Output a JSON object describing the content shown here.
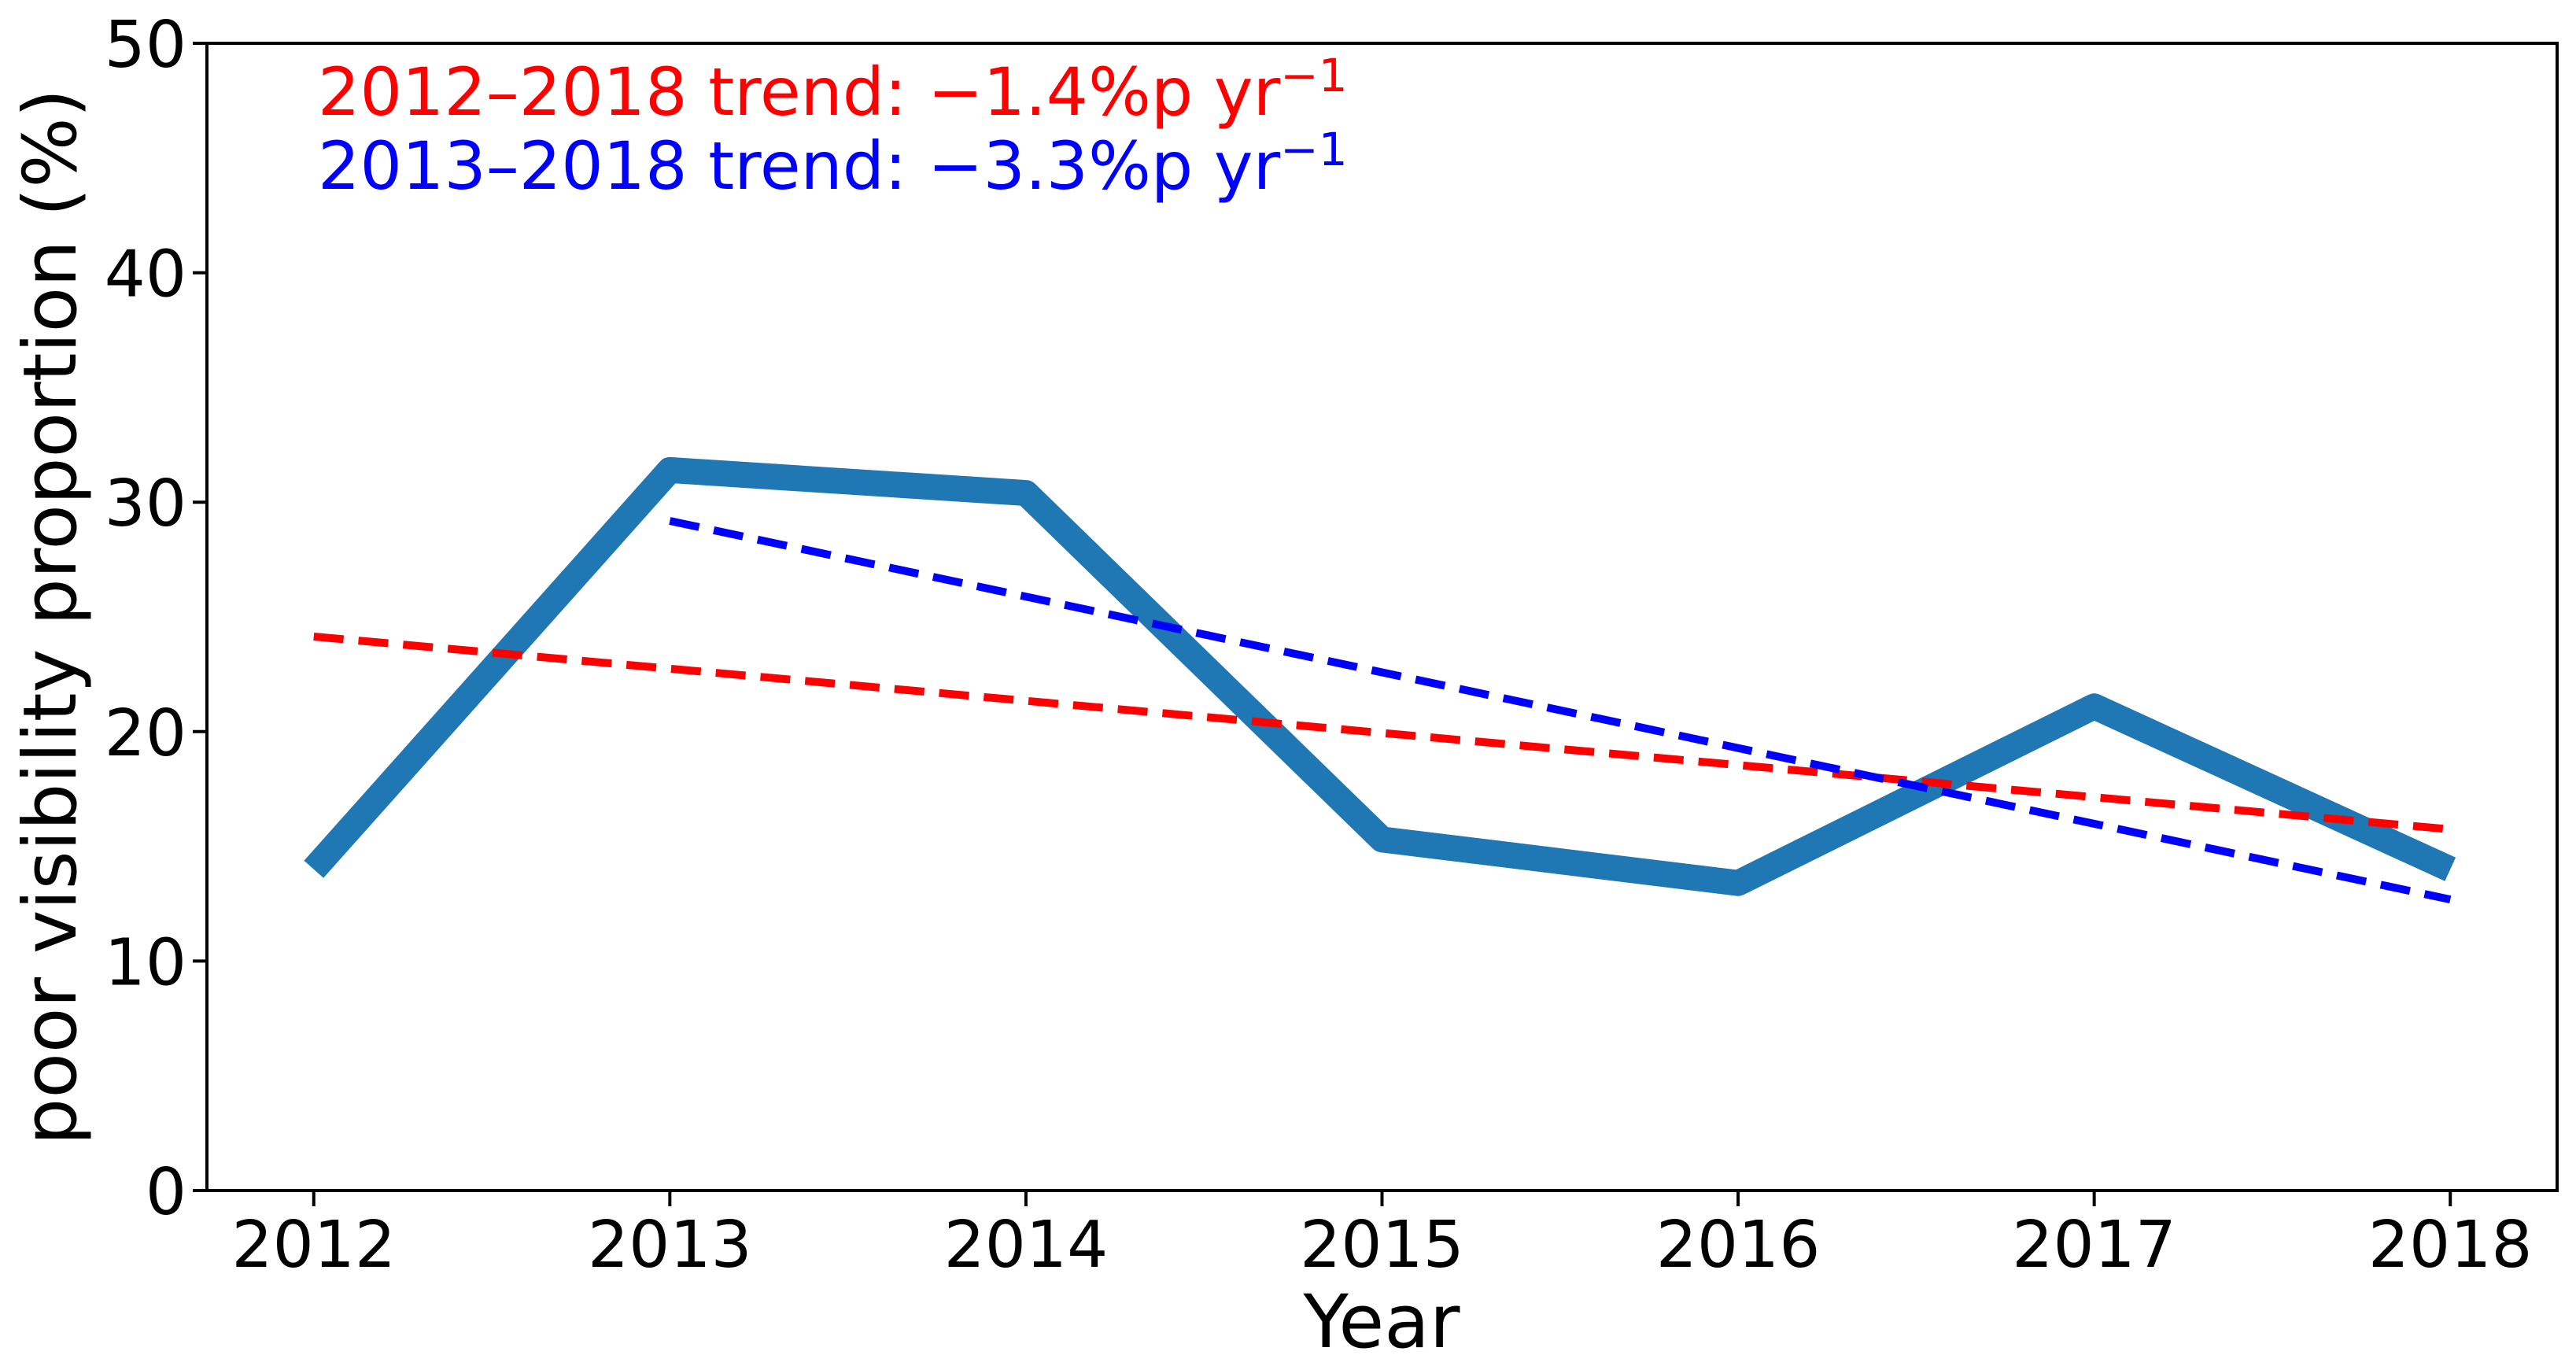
{
  "figure": {
    "background": "#ffffff",
    "spine_color": "#000000",
    "tick_color": "#000000",
    "text_color": "#000000"
  },
  "chart_data": {
    "type": "line",
    "title": "",
    "xlabel": "Year",
    "ylabel": "poor visibility proportion (%)",
    "x": [
      2012,
      2013,
      2014,
      2015,
      2016,
      2017,
      2018
    ],
    "x_tick_labels": [
      "2012",
      "2013",
      "2014",
      "2015",
      "2016",
      "2017",
      "2018"
    ],
    "y_ticks": [
      0,
      10,
      20,
      30,
      40,
      50
    ],
    "ylim": [
      0,
      50
    ],
    "grid": false,
    "legend": "none",
    "series": [
      {
        "name": "poor visibility proportion",
        "color": "#1f77b4",
        "style": "solid-thick",
        "values": [
          14.0,
          31.4,
          30.4,
          15.3,
          13.4,
          21.1,
          14.0
        ]
      }
    ],
    "trend_lines": [
      {
        "name": "2012–2018 trend",
        "start_year": 2012,
        "end_year": 2018,
        "slope_pct_points_per_year": -1.4,
        "color": "#ff0000",
        "style": "dashed"
      },
      {
        "name": "2013–2018 trend",
        "start_year": 2013,
        "end_year": 2018,
        "slope_pct_points_per_year": -3.3,
        "color": "#0000ff",
        "style": "dashed"
      }
    ],
    "annotations": [
      {
        "text": "2012–2018 trend: −1.4%p yr",
        "superscript": "−1",
        "color": "#ff0000"
      },
      {
        "text": "2013–2018 trend: −3.3%p yr",
        "superscript": "−1",
        "color": "#0000ff"
      }
    ]
  }
}
